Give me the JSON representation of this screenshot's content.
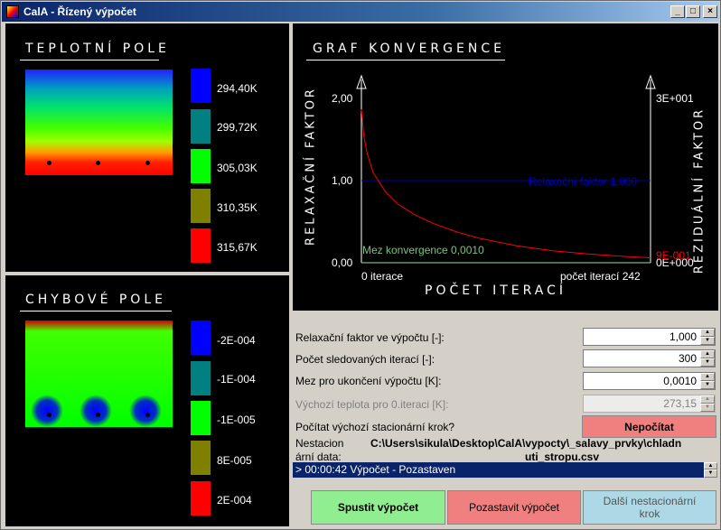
{
  "window": {
    "title": "CalA - Řízený výpočet",
    "minimize": "_",
    "maximize": "□",
    "close": "×"
  },
  "temp_field": {
    "title": "TEPLOTNÍ POLE",
    "legend": [
      "294,40K",
      "299,72K",
      "305,03K",
      "310,35K",
      "315,67K"
    ],
    "legend_colors": [
      "#0000ff",
      "#008080",
      "#00ff00",
      "#808000",
      "#ff0000"
    ]
  },
  "error_field": {
    "title": "CHYBOVÉ POLE",
    "legend": [
      "-2E-004",
      "-1E-004",
      "-1E-005",
      "8E-005",
      "2E-004"
    ],
    "legend_colors": [
      "#0000ff",
      "#008080",
      "#00ff00",
      "#808000",
      "#ff0000"
    ]
  },
  "graph": {
    "title": "GRAF KONVERGENCE",
    "left_axis_label": "RELAXAČNÍ FAKTOR",
    "right_axis_label": "REZIDUÁLNÍ FAKTOR",
    "bottom_axis_label": "POČET ITERACÍ",
    "y_left_ticks": [
      "2,00",
      "1,00",
      "0,00"
    ],
    "y_right_top": "3E+001",
    "y_right_bottom": "0E+000",
    "y_right_current": "9E-001",
    "x_left": "0 iterace",
    "x_right": "počet iterací 242",
    "relax_label": "Relaxační faktor 1,000",
    "conv_label": "Mez konvergence 0,0010",
    "colors": {
      "relax": "#0000a0",
      "conv": "#80c080",
      "residual": "#ff0000"
    }
  },
  "chart_data": {
    "type": "line",
    "title": "GRAF KONVERGENCE",
    "xlabel": "POČET ITERACÍ",
    "ylabel": "RELAXAČNÍ FAKTOR",
    "y2label": "REZIDUÁLNÍ FAKTOR",
    "xlim": [
      0,
      242
    ],
    "ylim": [
      0,
      2
    ],
    "y2lim": [
      0,
      30
    ],
    "x": [
      0,
      2,
      5,
      10,
      20,
      30,
      45,
      60,
      80,
      100,
      130,
      160,
      190,
      220,
      242
    ],
    "series": [
      {
        "name": "Relaxační faktor 1,000",
        "axis": "left",
        "values": [
          1,
          1,
          1,
          1,
          1,
          1,
          1,
          1,
          1,
          1,
          1,
          1,
          1,
          1,
          1
        ]
      },
      {
        "name": "Mez konvergence 0,0010",
        "axis": "left",
        "values": [
          0.001,
          0.001,
          0.001,
          0.001,
          0.001,
          0.001,
          0.001,
          0.001,
          0.001,
          0.001,
          0.001,
          0.001,
          0.001,
          0.001,
          0.001
        ]
      },
      {
        "name": "",
        "axis": "right",
        "values": [
          28,
          23.2,
          19.8,
          16.4,
          13.0,
          10.8,
          8.7,
          7.2,
          5.6,
          4.4,
          3.1,
          2.2,
          1.6,
          1.15,
          0.9
        ]
      }
    ],
    "grid": false
  },
  "form": {
    "relax_label": "Relaxační faktor ve výpočtu [-]:",
    "relax_value": "1,000",
    "iter_label": "Počet sledovaných iterací [-]:",
    "iter_value": "300",
    "limit_label": "Mez pro ukončení výpočtu [K]:",
    "limit_value": "0,0010",
    "init_temp_label": "Výchozí teplota pro 0.iteraci [K]:",
    "init_temp_value": "273,15",
    "stat_label": "Počítat výchozí stacionární krok?",
    "stat_button": "Nepočítat",
    "data_label_1": "Nestacion",
    "data_label_2": "ární data:",
    "data_path_1": "C:\\Users\\sikula\\Desktop\\CalA\\vypocty\\_salavy_prvky\\chladn",
    "data_path_2": "uti_stropu.csv",
    "log_line": "> 00:00:42 Výpočet - Pozastaven"
  },
  "buttons": {
    "start": "Spustit výpočet",
    "pause": "Pozastavit výpočet",
    "next_1": "Další nestacionární",
    "next_2": "krok"
  }
}
